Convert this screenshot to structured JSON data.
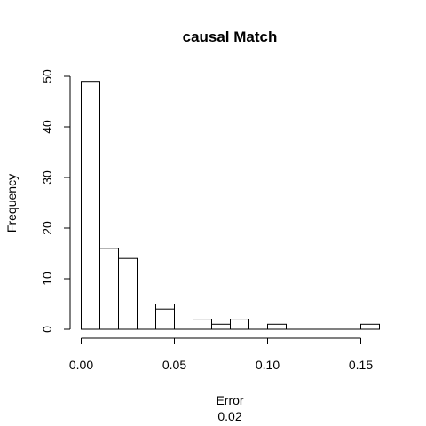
{
  "chart_data": {
    "type": "bar",
    "title": "causal Match",
    "xlabel": "Error",
    "xlabel_sub": "0.02",
    "ylabel": "Frequency",
    "bin_width": 0.01,
    "bins": [
      {
        "x0": 0.0,
        "x1": 0.01,
        "count": 49
      },
      {
        "x0": 0.01,
        "x1": 0.02,
        "count": 16
      },
      {
        "x0": 0.02,
        "x1": 0.03,
        "count": 14
      },
      {
        "x0": 0.03,
        "x1": 0.04,
        "count": 5
      },
      {
        "x0": 0.04,
        "x1": 0.05,
        "count": 4
      },
      {
        "x0": 0.05,
        "x1": 0.06,
        "count": 5
      },
      {
        "x0": 0.06,
        "x1": 0.07,
        "count": 2
      },
      {
        "x0": 0.07,
        "x1": 0.08,
        "count": 1
      },
      {
        "x0": 0.08,
        "x1": 0.09,
        "count": 2
      },
      {
        "x0": 0.09,
        "x1": 0.1,
        "count": 0
      },
      {
        "x0": 0.1,
        "x1": 0.11,
        "count": 1
      },
      {
        "x0": 0.11,
        "x1": 0.12,
        "count": 0
      },
      {
        "x0": 0.12,
        "x1": 0.13,
        "count": 0
      },
      {
        "x0": 0.13,
        "x1": 0.14,
        "count": 0
      },
      {
        "x0": 0.14,
        "x1": 0.15,
        "count": 0
      },
      {
        "x0": 0.15,
        "x1": 0.16,
        "count": 1
      }
    ],
    "xlim": [
      0.0,
      0.16
    ],
    "ylim": [
      0,
      50
    ],
    "x_ticks": [
      0.0,
      0.05,
      0.1,
      0.15
    ],
    "x_tick_labels": [
      "0.00",
      "0.05",
      "0.10",
      "0.15"
    ],
    "y_ticks": [
      0,
      10,
      20,
      30,
      40,
      50
    ],
    "y_tick_labels": [
      "0",
      "10",
      "20",
      "30",
      "40",
      "50"
    ],
    "grid": false,
    "bar_fill": "#ffffff",
    "bar_stroke": "#000000"
  }
}
